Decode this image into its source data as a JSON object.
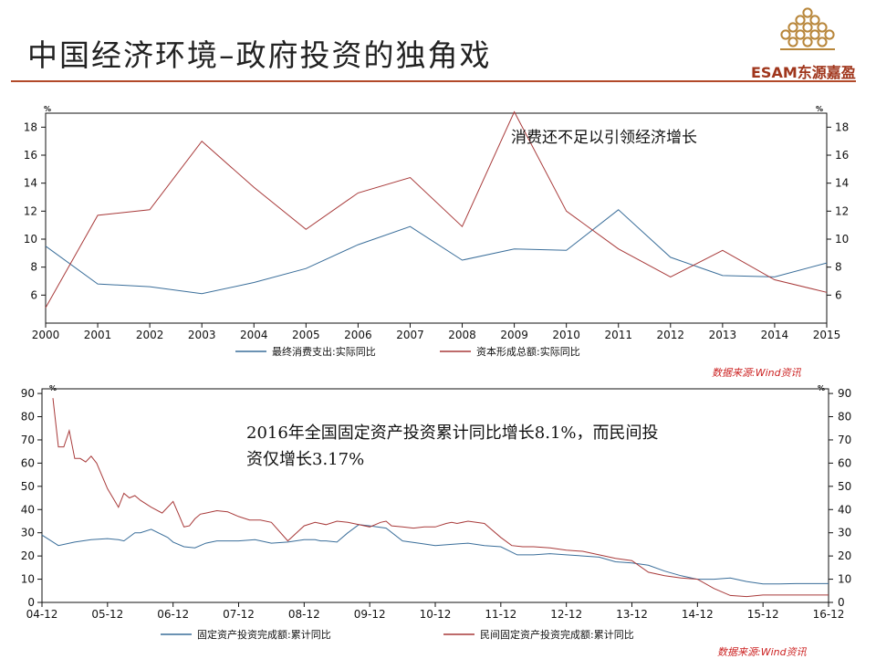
{
  "header": {
    "title": "中国经济环境–政府投资的独角戏",
    "logo_text": "ESAM东源嘉盈",
    "rule_color": "#b24a2a",
    "logo_color": "#b8863a"
  },
  "chart_data": [
    {
      "type": "line",
      "x": [
        "2000",
        "2001",
        "2002",
        "2003",
        "2004",
        "2005",
        "2006",
        "2007",
        "2008",
        "2009",
        "2010",
        "2011",
        "2012",
        "2013",
        "2014",
        "2015"
      ],
      "series": [
        {
          "name": "最终消费支出:实际同比",
          "color": "#3a6e9a",
          "values": [
            9.5,
            6.8,
            6.6,
            6.1,
            6.9,
            7.9,
            9.6,
            10.9,
            8.5,
            9.3,
            9.2,
            12.1,
            8.7,
            7.4,
            7.3,
            8.3
          ]
        },
        {
          "name": "资本形成总额:实际同比",
          "color": "#a83a3a",
          "values": [
            5.1,
            11.7,
            12.1,
            17.0,
            13.7,
            10.7,
            13.3,
            14.4,
            10.9,
            19.1,
            12.0,
            9.3,
            7.3,
            9.2,
            7.1,
            6.2
          ]
        }
      ],
      "ylim": [
        4,
        19
      ],
      "yticks": [
        6,
        8,
        10,
        12,
        14,
        16,
        18
      ],
      "y_unit_left": "%",
      "y_unit_right": "%",
      "annotation": "消费还不足以引领经济增长",
      "source": "数据来源:Wind资讯",
      "legend_position": "bottom"
    },
    {
      "type": "line",
      "x_tick_labels": [
        "04-12",
        "05-12",
        "06-12",
        "07-12",
        "08-12",
        "09-12",
        "10-12",
        "11-12",
        "12-12",
        "13-12",
        "14-12",
        "15-12",
        "16-12"
      ],
      "x_range": [
        0,
        144
      ],
      "series": [
        {
          "name": "固定资产投资完成额:累计同比",
          "color": "#3a6e9a",
          "x": [
            0,
            3,
            6,
            9,
            12,
            14,
            15,
            17,
            18,
            20,
            23,
            24,
            26,
            28,
            30,
            32,
            34,
            36,
            39,
            42,
            45,
            48,
            50,
            51,
            52,
            54,
            56,
            58,
            60,
            63,
            66,
            69,
            72,
            75,
            78,
            81,
            84,
            87,
            90,
            93,
            96,
            99,
            102,
            105,
            108,
            111,
            114,
            117,
            120,
            123,
            126,
            129,
            132,
            135,
            138,
            141,
            144
          ],
          "values": [
            29.0,
            24.5,
            26.0,
            27.0,
            27.5,
            27.0,
            26.5,
            30.0,
            30.0,
            31.5,
            28.0,
            26.0,
            24.0,
            23.5,
            25.5,
            26.5,
            26.5,
            26.5,
            27.0,
            25.5,
            26.0,
            27.0,
            27.0,
            26.5,
            26.5,
            26.0,
            30.0,
            33.5,
            33.0,
            32.0,
            26.5,
            25.5,
            24.5,
            25.0,
            25.5,
            24.5,
            24.0,
            20.5,
            20.5,
            21.0,
            20.5,
            20.0,
            19.5,
            17.5,
            17.0,
            16.0,
            13.5,
            11.5,
            10.0,
            10.0,
            10.5,
            9.0,
            8.0,
            8.0,
            8.1,
            8.1,
            8.1
          ]
        },
        {
          "name": "民间固定资产投资完成额:累计同比",
          "color": "#a83a3a",
          "x": [
            2,
            3,
            4,
            5,
            6,
            7,
            8,
            9,
            10,
            12,
            13,
            14,
            15,
            16,
            17,
            18,
            20,
            22,
            24,
            25,
            26,
            27,
            28,
            29,
            30,
            32,
            34,
            36,
            38,
            40,
            42,
            45,
            48,
            50,
            52,
            54,
            56,
            58,
            60,
            62,
            63,
            64,
            66,
            68,
            70,
            72,
            74,
            75,
            76,
            78,
            81,
            84,
            86,
            88,
            90,
            93,
            96,
            99,
            102,
            105,
            108,
            111,
            114,
            117,
            120,
            123,
            126,
            129,
            132,
            135,
            138,
            141,
            144
          ],
          "values": [
            88.0,
            67.0,
            67.0,
            74.0,
            62.0,
            62.0,
            60.5,
            63.0,
            60.0,
            49.0,
            45.0,
            41.0,
            47.0,
            45.0,
            46.0,
            44.0,
            41.0,
            38.5,
            43.5,
            38.0,
            32.5,
            33.0,
            36.0,
            38.0,
            38.5,
            39.5,
            39.0,
            37.0,
            35.5,
            35.5,
            34.5,
            26.5,
            33.0,
            34.5,
            33.5,
            35.0,
            34.5,
            33.5,
            32.5,
            34.5,
            35.0,
            33.0,
            32.5,
            32.0,
            32.5,
            32.5,
            34.0,
            34.5,
            34.0,
            35.0,
            34.0,
            28.0,
            24.5,
            24.0,
            24.0,
            23.5,
            22.5,
            22.0,
            20.5,
            19.0,
            18.0,
            13.0,
            11.5,
            10.5,
            10.0,
            6.0,
            3.0,
            2.5,
            3.2,
            3.2,
            3.2,
            3.2,
            3.2
          ]
        }
      ],
      "ylim": [
        0,
        92
      ],
      "yticks": [
        0,
        10,
        20,
        30,
        40,
        50,
        60,
        70,
        80,
        90
      ],
      "y_unit_left": "%",
      "y_unit_right": "%",
      "annotation_line1": "2016年全国固定资产投资累计同比增长8.1%，而民间投",
      "annotation_line2": "资仅增长3.17%",
      "source": "数据来源:Wind资讯",
      "legend_position": "bottom"
    }
  ]
}
